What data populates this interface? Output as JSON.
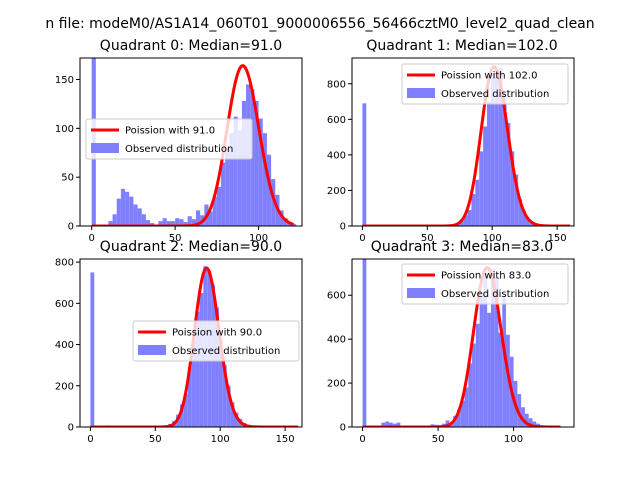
{
  "figure_title": "n file: modeM0/AS1A14_060T01_9000006556_56466cztM0_level2_quad_clean",
  "colors": {
    "fit": "#ff0000",
    "hist": "#8080ff",
    "axis": "#000000",
    "legend_border": "#cccccc"
  },
  "chart_data": [
    {
      "type": "bar",
      "title": "Quadrant 0: Median=91.0",
      "xlim": [
        -7,
        126
      ],
      "ylim": [
        0,
        172
      ],
      "xticks": [
        0,
        50,
        100
      ],
      "yticks": [
        0,
        50,
        100,
        150
      ],
      "legend": [
        "Poission with 91.0",
        "Observed distribution"
      ],
      "legend_position": "center-right",
      "series": [
        {
          "name": "Observed distribution",
          "kind": "histogram",
          "bin_width": 2.5,
          "bins": [
            [
              0,
              175
            ],
            [
              5,
              1
            ],
            [
              10,
              5
            ],
            [
              12.5,
              12
            ],
            [
              15,
              28
            ],
            [
              17.5,
              38
            ],
            [
              20,
              35
            ],
            [
              22.5,
              30
            ],
            [
              25,
              22
            ],
            [
              27.5,
              18
            ],
            [
              30,
              12
            ],
            [
              32.5,
              6
            ],
            [
              35,
              3
            ],
            [
              37.5,
              1
            ],
            [
              40,
              5
            ],
            [
              42.5,
              8
            ],
            [
              45,
              5
            ],
            [
              47.5,
              5
            ],
            [
              50,
              8
            ],
            [
              52.5,
              7
            ],
            [
              55,
              4
            ],
            [
              57.5,
              10
            ],
            [
              60,
              7
            ],
            [
              62.5,
              16
            ],
            [
              65,
              11
            ],
            [
              67.5,
              22
            ],
            [
              70,
              15
            ],
            [
              72.5,
              30
            ],
            [
              75,
              40
            ],
            [
              77.5,
              65
            ],
            [
              80,
              80
            ],
            [
              82.5,
              95
            ],
            [
              85,
              112
            ],
            [
              87.5,
              98
            ],
            [
              90,
              128
            ],
            [
              92.5,
              145
            ],
            [
              95,
              140
            ],
            [
              97.5,
              128
            ],
            [
              100,
              110
            ],
            [
              102.5,
              95
            ],
            [
              105,
              73
            ],
            [
              107.5,
              48
            ],
            [
              110,
              32
            ],
            [
              112.5,
              16
            ],
            [
              115,
              8
            ],
            [
              117.5,
              4
            ],
            [
              120,
              2
            ]
          ]
        },
        {
          "name": "Poission with 91.0",
          "kind": "poisson",
          "mean": 91.0,
          "scale": 164,
          "x_range": [
            0,
            121
          ]
        }
      ]
    },
    {
      "type": "bar",
      "title": "Quadrant 1: Median=102.0",
      "xlim": [
        -8,
        163
      ],
      "ylim": [
        0,
        945
      ],
      "xticks": [
        0,
        50,
        100,
        150
      ],
      "yticks": [
        0,
        200,
        400,
        600,
        800
      ],
      "legend": [
        "Poission with 102.0",
        "Observed distribution"
      ],
      "legend_position": "upper-right",
      "series": [
        {
          "name": "Observed distribution",
          "kind": "histogram",
          "bin_width": 3,
          "bins": [
            [
              0,
              690
            ],
            [
              69,
              5
            ],
            [
              72,
              10
            ],
            [
              75,
              30
            ],
            [
              78,
              60
            ],
            [
              81,
              90
            ],
            [
              84,
              180
            ],
            [
              87,
              260
            ],
            [
              90,
              420
            ],
            [
              93,
              560
            ],
            [
              96,
              700
            ],
            [
              99,
              860
            ],
            [
              102,
              880
            ],
            [
              105,
              890
            ],
            [
              108,
              750
            ],
            [
              111,
              580
            ],
            [
              114,
              420
            ],
            [
              117,
              290
            ],
            [
              120,
              150
            ],
            [
              123,
              85
            ],
            [
              126,
              40
            ],
            [
              129,
              20
            ],
            [
              132,
              8
            ],
            [
              135,
              3
            ]
          ]
        },
        {
          "name": "Poission with 102.0",
          "kind": "poisson",
          "mean": 102.0,
          "scale": 895,
          "x_range": [
            0,
            160
          ]
        }
      ]
    },
    {
      "type": "bar",
      "title": "Quadrant 2: Median=90.0",
      "xlim": [
        -8,
        163
      ],
      "ylim": [
        0,
        815
      ],
      "xticks": [
        0,
        50,
        100,
        150
      ],
      "yticks": [
        0,
        200,
        400,
        600,
        800
      ],
      "legend": [
        "Poission with 90.0",
        "Observed distribution"
      ],
      "legend_position": "center-right",
      "series": [
        {
          "name": "Observed distribution",
          "kind": "histogram",
          "bin_width": 3,
          "bins": [
            [
              0,
              750
            ],
            [
              12,
              8
            ],
            [
              24,
              6
            ],
            [
              36,
              5
            ],
            [
              54,
              6
            ],
            [
              60,
              15
            ],
            [
              63,
              30
            ],
            [
              66,
              60
            ],
            [
              69,
              110
            ],
            [
              72,
              160
            ],
            [
              75,
              290
            ],
            [
              78,
              420
            ],
            [
              81,
              560
            ],
            [
              84,
              650
            ],
            [
              87,
              780
            ],
            [
              90,
              760
            ],
            [
              93,
              690
            ],
            [
              96,
              580
            ],
            [
              99,
              420
            ],
            [
              102,
              300
            ],
            [
              105,
              200
            ],
            [
              108,
              120
            ],
            [
              111,
              70
            ],
            [
              114,
              40
            ],
            [
              117,
              20
            ],
            [
              120,
              10
            ],
            [
              123,
              6
            ],
            [
              126,
              3
            ]
          ]
        },
        {
          "name": "Poission with 90.0",
          "kind": "poisson",
          "mean": 90.0,
          "scale": 770,
          "x_range": [
            0,
            160
          ]
        }
      ]
    },
    {
      "type": "bar",
      "title": "Quadrant 3: Median=83.0",
      "xlim": [
        -7,
        140
      ],
      "ylim": [
        0,
        765
      ],
      "xticks": [
        0,
        50,
        100
      ],
      "yticks": [
        0,
        200,
        400,
        600
      ],
      "legend": [
        "Poission with 83.0",
        "Observed distribution"
      ],
      "legend_position": "upper-right",
      "series": [
        {
          "name": "Observed distribution",
          "kind": "histogram",
          "bin_width": 2.5,
          "bins": [
            [
              0,
              765
            ],
            [
              12.5,
              20
            ],
            [
              15,
              25
            ],
            [
              17.5,
              20
            ],
            [
              20,
              15
            ],
            [
              22.5,
              20
            ],
            [
              45,
              12
            ],
            [
              47.5,
              10
            ],
            [
              50,
              8
            ],
            [
              52.5,
              15
            ],
            [
              55,
              30
            ],
            [
              57.5,
              20
            ],
            [
              60,
              50
            ],
            [
              62.5,
              80
            ],
            [
              65,
              120
            ],
            [
              67.5,
              180
            ],
            [
              70,
              290
            ],
            [
              72.5,
              380
            ],
            [
              75,
              470
            ],
            [
              77.5,
              600
            ],
            [
              80,
              700
            ],
            [
              82.5,
              520
            ],
            [
              85,
              720
            ],
            [
              87.5,
              680
            ],
            [
              90,
              430
            ],
            [
              92.5,
              600
            ],
            [
              95,
              420
            ],
            [
              97.5,
              320
            ],
            [
              100,
              210
            ],
            [
              102.5,
              150
            ],
            [
              105,
              90
            ],
            [
              107.5,
              60
            ],
            [
              110,
              40
            ],
            [
              112.5,
              25
            ],
            [
              115,
              15
            ],
            [
              117.5,
              8
            ],
            [
              120,
              4
            ]
          ]
        },
        {
          "name": "Poission with 83.0",
          "kind": "poisson",
          "mean": 83.0,
          "scale": 725,
          "x_range": [
            0,
            131
          ]
        }
      ]
    }
  ]
}
